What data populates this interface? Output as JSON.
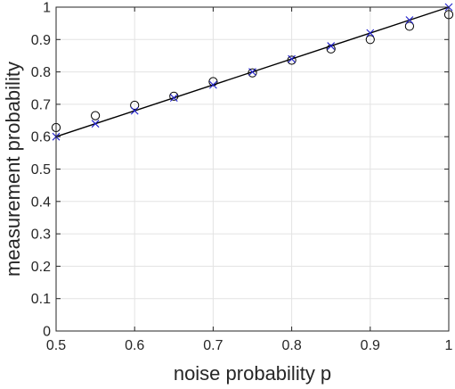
{
  "chart_data": {
    "type": "scatter",
    "title": "",
    "xlabel": "noise probability p",
    "ylabel": "measurement probability",
    "xlim": [
      0.5,
      1
    ],
    "ylim": [
      0,
      1
    ],
    "grid": true,
    "x_ticks": [
      0.5,
      0.6,
      0.7,
      0.8,
      0.9,
      1
    ],
    "x_tick_labels": [
      "0.5",
      "0.6",
      "0.7",
      "0.8",
      "0.9",
      "1"
    ],
    "y_ticks": [
      0,
      0.1,
      0.2,
      0.3,
      0.4,
      0.5,
      0.6,
      0.7,
      0.8,
      0.9,
      1
    ],
    "y_tick_labels": [
      "0",
      "0.1",
      "0.2",
      "0.3",
      "0.4",
      "0.5",
      "0.6",
      "0.7",
      "0.8",
      "0.9",
      "1"
    ],
    "series": [
      {
        "marker": "line",
        "color": "#000000",
        "x": [
          0.5,
          1
        ],
        "y": [
          0.6,
          1
        ]
      },
      {
        "marker": "circle",
        "color": "#000000",
        "x": [
          0.5,
          0.55,
          0.6,
          0.65,
          0.7,
          0.75,
          0.8,
          0.85,
          0.9,
          0.95,
          1
        ],
        "y": [
          0.628,
          0.665,
          0.697,
          0.725,
          0.77,
          0.797,
          0.836,
          0.871,
          0.9,
          0.941,
          0.977
        ]
      },
      {
        "marker": "x",
        "color": "#1f1fcc",
        "x": [
          0.5,
          0.55,
          0.6,
          0.65,
          0.7,
          0.75,
          0.8,
          0.85,
          0.9,
          0.95,
          1
        ],
        "y": [
          0.6,
          0.64,
          0.68,
          0.72,
          0.76,
          0.8,
          0.84,
          0.88,
          0.92,
          0.96,
          1
        ]
      }
    ]
  }
}
